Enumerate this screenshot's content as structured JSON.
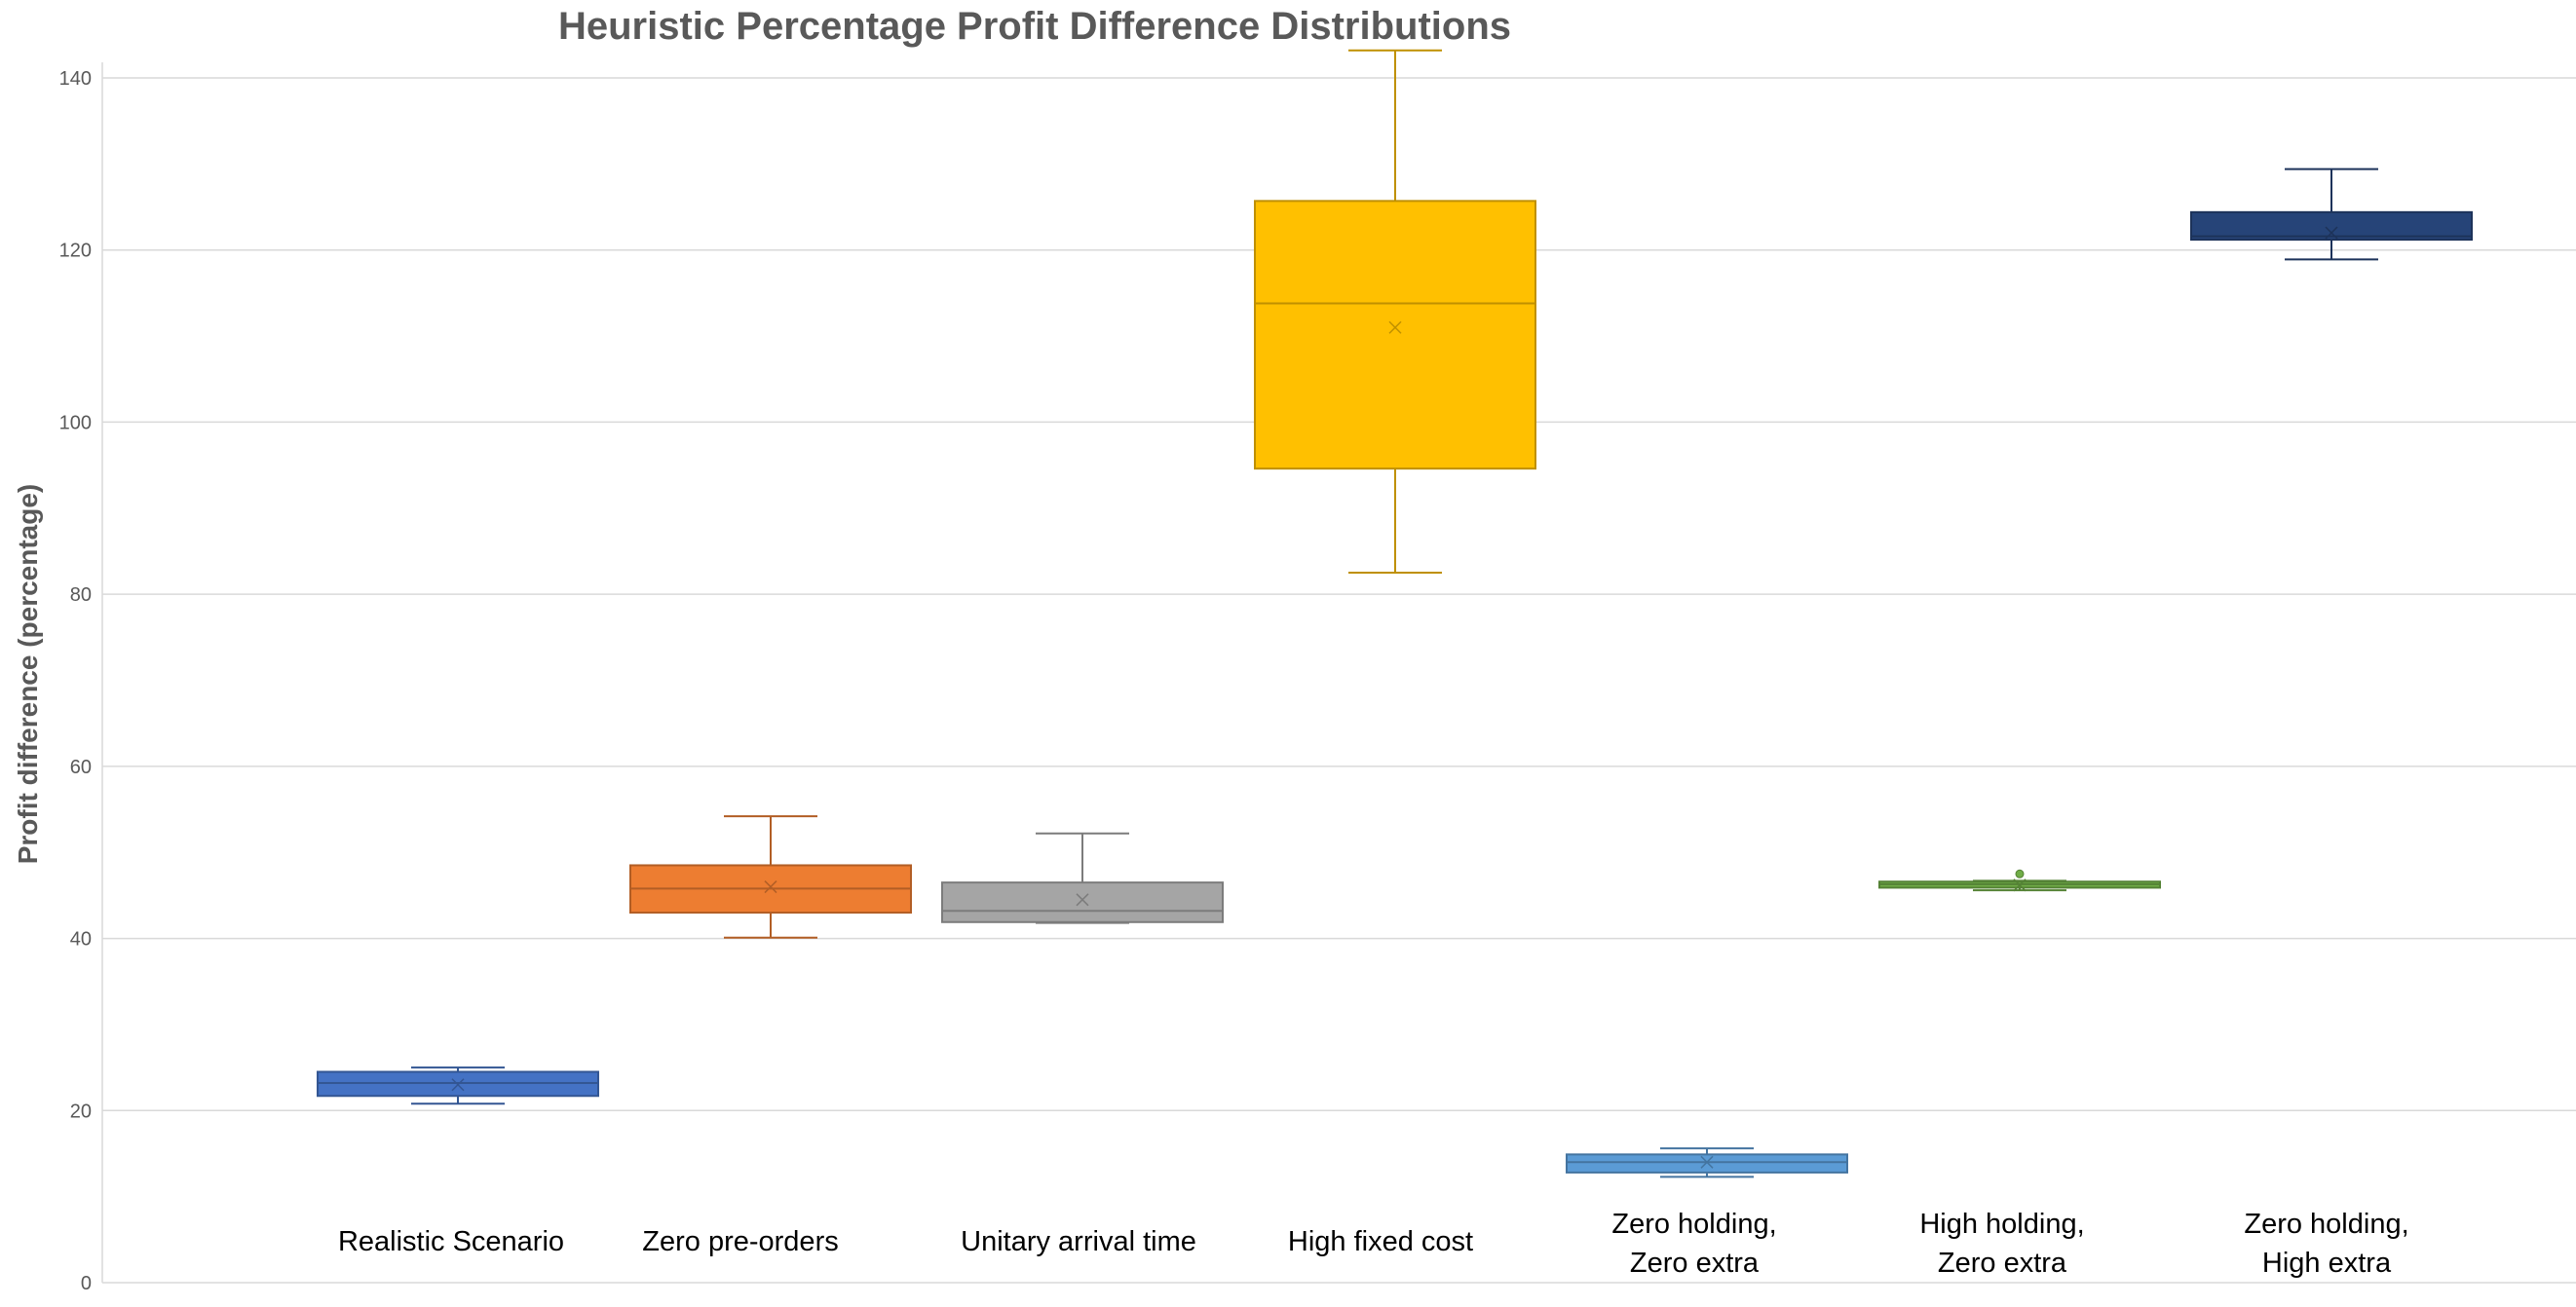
{
  "chart_data": {
    "type": "box",
    "title": "Heuristic Percentage Profit Difference Distributions",
    "xlabel": "",
    "ylabel": "Profit difference (percentage)",
    "ylim": [
      0,
      145
    ],
    "yticks": [
      0,
      20,
      40,
      60,
      80,
      100,
      120,
      140
    ],
    "grid": true,
    "categories": [
      [
        "Realistic Scenario"
      ],
      [
        "Zero pre-orders"
      ],
      [
        "Unitary arrival time"
      ],
      [
        "High fixed cost"
      ],
      [
        "Zero holding,",
        "Zero extra"
      ],
      [
        "High holding,",
        "Zero extra"
      ],
      [
        "Zero holding,",
        "High extra"
      ]
    ],
    "boxes": [
      {
        "min": 20.8,
        "q1": 21.7,
        "median": 23.2,
        "q3": 24.5,
        "max": 25.0,
        "mean": 23.0,
        "outliers": [],
        "color": "#4472C4"
      },
      {
        "min": 40.1,
        "q1": 43.0,
        "median": 45.8,
        "q3": 48.5,
        "max": 54.2,
        "mean": 46.0,
        "outliers": [],
        "color": "#ED7D31"
      },
      {
        "min": 41.8,
        "q1": 41.9,
        "median": 43.2,
        "q3": 46.5,
        "max": 52.2,
        "mean": 44.5,
        "outliers": [],
        "color": "#A5A5A5"
      },
      {
        "min": 82.5,
        "q1": 94.6,
        "median": 113.8,
        "q3": 125.7,
        "max": 143.2,
        "mean": 111.0,
        "outliers": [],
        "color": "#FFC000"
      },
      {
        "min": 12.3,
        "q1": 12.8,
        "median": 14.0,
        "q3": 14.9,
        "max": 15.6,
        "mean": 14.0,
        "outliers": [],
        "color": "#5B9BD5"
      },
      {
        "min": 45.6,
        "q1": 45.9,
        "median": 46.3,
        "q3": 46.6,
        "max": 46.7,
        "mean": 46.2,
        "outliers": [
          47.5
        ],
        "color": "#70AD47"
      },
      {
        "min": 118.9,
        "q1": 121.2,
        "median": 121.6,
        "q3": 124.4,
        "max": 129.4,
        "mean": 122.0,
        "outliers": [],
        "color": "#264478"
      }
    ]
  }
}
